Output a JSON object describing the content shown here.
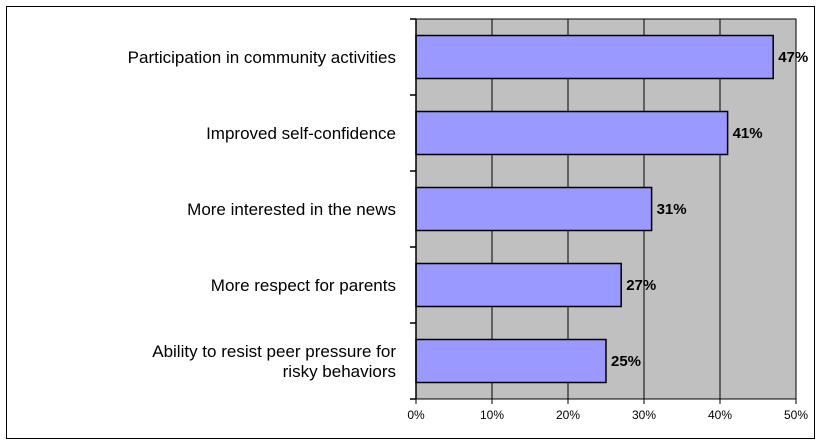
{
  "chart_data": {
    "type": "bar",
    "orientation": "horizontal",
    "title": "",
    "xlabel": "",
    "ylabel": "",
    "categories": [
      "Participation in community activities",
      "Improved self-confidence",
      "More interested in the news",
      "More respect for parents",
      "Ability to resist peer pressure for risky behaviors"
    ],
    "category_lines": [
      [
        "Participation in community activities"
      ],
      [
        "Improved self-confidence"
      ],
      [
        "More interested in the news"
      ],
      [
        "More respect for parents"
      ],
      [
        "Ability to resist peer pressure for",
        "risky behaviors"
      ]
    ],
    "values": [
      47,
      41,
      31,
      27,
      25
    ],
    "value_labels": [
      "47%",
      "41%",
      "31%",
      "27%",
      "25%"
    ],
    "xlim": [
      0,
      50
    ],
    "ticks": [
      0,
      10,
      20,
      30,
      40,
      50
    ],
    "tick_labels": [
      "0%",
      "10%",
      "20%",
      "30%",
      "40%",
      "50%"
    ],
    "grid": true,
    "legend": "none",
    "colors": {
      "bar_fill": "#9999ff",
      "bar_stroke": "#000000",
      "plot_background": "#c0c0c0",
      "gridline": "#000000",
      "frame": "#000000"
    }
  }
}
